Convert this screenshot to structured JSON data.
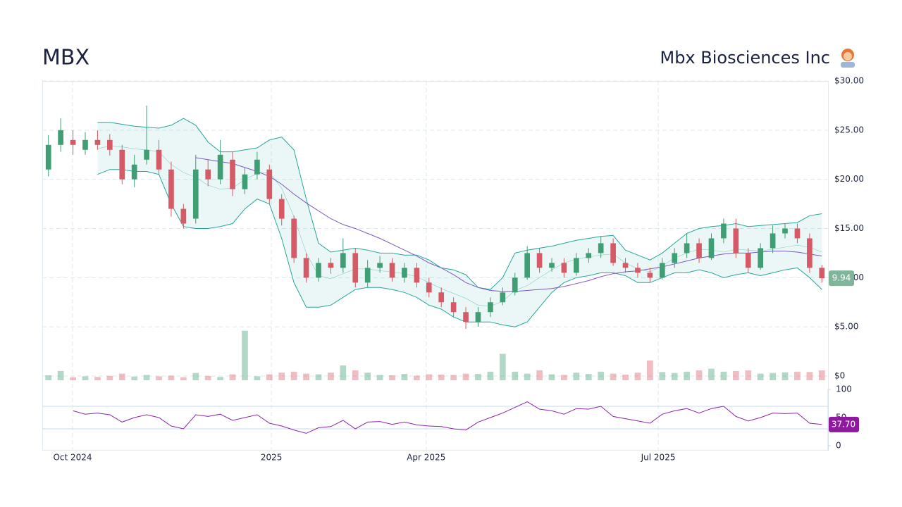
{
  "chart_data": {
    "type": "candlestick",
    "title": "MBX",
    "subtitle": "Mbx Biosciences Inc",
    "xlim": [
      -0.5,
      63.5
    ],
    "xticks": [
      {
        "value": 1.97,
        "label": "Oct 2024"
      },
      {
        "value": 18.16,
        "label": "2025"
      },
      {
        "value": 30.77,
        "label": "Apr 2025"
      },
      {
        "value": 49.67,
        "label": "Jul 2025"
      }
    ],
    "ylim": [
      0,
      30
    ],
    "yticks": [
      {
        "value": 0,
        "label": "$0"
      },
      {
        "value": 5,
        "label": "$5.00"
      },
      {
        "value": 10,
        "label": "$10.00"
      },
      {
        "value": 15,
        "label": "$15.00"
      },
      {
        "value": 20,
        "label": "$20.00"
      },
      {
        "value": 25,
        "label": "$25.00"
      },
      {
        "value": 30,
        "label": "$30.00"
      }
    ],
    "grid": true,
    "up_color": "#3f9e74",
    "down_color": "#d65a66",
    "open": [
      21,
      23.5,
      24,
      23,
      24,
      24,
      23,
      20,
      22,
      23,
      21,
      17,
      16,
      21,
      20,
      22,
      19,
      20.5,
      21,
      18,
      16,
      12,
      10,
      11.5,
      11,
      12.5,
      9.5,
      11,
      11.5,
      10,
      11,
      9.5,
      8.5,
      7.5,
      6.5,
      5.5,
      6.5,
      7.5,
      8.5,
      10,
      12.5,
      11,
      11.5,
      10.5,
      12,
      12.5,
      13.5,
      11.5,
      11,
      10.5,
      10,
      11.5,
      12.5,
      13.5,
      12,
      14,
      15,
      12.5,
      11,
      13,
      14.5,
      15,
      14,
      11
    ],
    "high": [
      24.5,
      26.2,
      25,
      24.8,
      25,
      24.6,
      23.5,
      22.5,
      27.5,
      24,
      21.8,
      17.5,
      22.5,
      22,
      24,
      22.8,
      21.2,
      22.8,
      21.5,
      18.5,
      16.3,
      12.5,
      12,
      12,
      14,
      13,
      11.8,
      12.2,
      12,
      11.5,
      11.5,
      10,
      9,
      8,
      7,
      7,
      8,
      9,
      10.5,
      13.2,
      13,
      12,
      12,
      12.5,
      13,
      14.2,
      14,
      12,
      11.5,
      11,
      12,
      13,
      14.5,
      14,
      14.5,
      16,
      16,
      13,
      13.5,
      15.3,
      15.5,
      15.5,
      14.5,
      11.3
    ],
    "low": [
      20.3,
      22.8,
      22.5,
      22.5,
      23,
      22.4,
      19.5,
      19.2,
      21.5,
      20.5,
      16.2,
      15,
      15.5,
      19.3,
      19.5,
      18.3,
      18.5,
      20,
      17.5,
      15.3,
      11.5,
      9.5,
      9.6,
      10.4,
      10.5,
      9,
      9,
      10.5,
      9.6,
      9.5,
      9,
      8,
      7,
      6,
      4.8,
      5,
      6,
      7.2,
      8.2,
      9.8,
      10.5,
      10.6,
      10,
      10.2,
      11.5,
      12,
      11.2,
      10.5,
      10,
      9.5,
      9.8,
      11,
      12,
      11.5,
      11.8,
      13.5,
      12,
      10.5,
      10.8,
      12.5,
      14,
      13.5,
      10.5,
      9.5
    ],
    "close": [
      23.5,
      25,
      23.5,
      24,
      23.5,
      23,
      20,
      21.5,
      23,
      21,
      17,
      15.5,
      21,
      20,
      22.5,
      19,
      20.5,
      22,
      18,
      16,
      12,
      10,
      11.5,
      11,
      12.5,
      9.5,
      11,
      11.5,
      10,
      11,
      9.5,
      8.5,
      7.5,
      6.5,
      5.5,
      6.5,
      7.5,
      8.5,
      10,
      12.5,
      11,
      11.5,
      10.5,
      12,
      12.5,
      13.5,
      11.5,
      11,
      10.5,
      10,
      11.5,
      12.5,
      13.5,
      12,
      14,
      15.5,
      12.5,
      11,
      13,
      14.5,
      15,
      14,
      11,
      9.94
    ],
    "last_price_label": "9.94",
    "last_price_color": "#7fb59a",
    "bands": {
      "color": "#26a69a",
      "upper": [
        null,
        null,
        null,
        null,
        25.8,
        25.8,
        25.6,
        25.4,
        25.3,
        25.2,
        25.5,
        26.2,
        25.5,
        23.8,
        22.8,
        22.8,
        23,
        23.2,
        24,
        24.3,
        23,
        18,
        13.5,
        12.6,
        12.8,
        13,
        12.8,
        12.5,
        12.5,
        12.3,
        12.3,
        11.8,
        11,
        10.8,
        10.3,
        9,
        8.8,
        10,
        12.5,
        12.8,
        13,
        13.2,
        13.5,
        13.8,
        14,
        14.2,
        14.3,
        12.8,
        12.3,
        11.8,
        12.5,
        13.5,
        14.5,
        15,
        15.2,
        15.3,
        15.5,
        15.2,
        15.3,
        15.4,
        15.5,
        15.6,
        16.3,
        16.5
      ],
      "middle": [
        null,
        null,
        null,
        null,
        23.1,
        23.4,
        23.3,
        23.1,
        23,
        22.8,
        21.5,
        20.7,
        20.2,
        19.4,
        19,
        19.1,
        20,
        20.6,
        20.7,
        19.1,
        16.2,
        12.5,
        10.2,
        9.9,
        10.4,
        10.9,
        10.9,
        10.7,
        10.6,
        10.4,
        10.1,
        9.5,
        8.9,
        8.4,
        7.9,
        7.2,
        7.1,
        7.6,
        8.7,
        9.2,
        10,
        10.8,
        11.5,
        11.9,
        12.1,
        12.3,
        12.4,
        11.5,
        10.9,
        10.6,
        11.2,
        12,
        12.5,
        12.9,
        12.8,
        12.6,
        12.9,
        12.8,
        12.7,
        12.9,
        13.1,
        13.3,
        13.1,
        12.6
      ],
      "lower": [
        null,
        null,
        null,
        null,
        20.5,
        21,
        21,
        20.8,
        20.8,
        20.5,
        17.5,
        15.2,
        15,
        15,
        15.2,
        15.5,
        17,
        18,
        17.5,
        14,
        9.5,
        7,
        7,
        7.2,
        8,
        8.8,
        9,
        9,
        8.8,
        8.5,
        8,
        7.2,
        6.8,
        6,
        5.5,
        5.5,
        5.5,
        5.2,
        5,
        5.5,
        7,
        8.5,
        9.5,
        10,
        10.2,
        10.5,
        10.5,
        10.2,
        9.5,
        9.5,
        10,
        10.5,
        10.5,
        10.8,
        10.5,
        10,
        10.3,
        10.5,
        10.2,
        10.5,
        10.8,
        11,
        10,
        8.8
      ]
    },
    "moving_average": {
      "color": "#7e57c2",
      "values": [
        null,
        null,
        null,
        null,
        null,
        null,
        null,
        null,
        null,
        null,
        null,
        null,
        22.2,
        22,
        21.8,
        21.6,
        21.2,
        20.8,
        20.3,
        19.5,
        18.5,
        17.6,
        16.8,
        16,
        15.4,
        15,
        14.5,
        14,
        13.4,
        12.8,
        12.2,
        11.5,
        11,
        10.3,
        9.5,
        9,
        8.7,
        8.6,
        8.6,
        8.7,
        8.8,
        8.9,
        9.1,
        9.4,
        9.7,
        10.1,
        10.4,
        10.6,
        10.7,
        10.9,
        11.1,
        11.4,
        11.7,
        12,
        12.2,
        12.4,
        12.5,
        12.5,
        12.6,
        12.7,
        12.7,
        12.6,
        12.4,
        12.2
      ]
    },
    "volume": {
      "ylim": [
        0,
        1600000
      ],
      "values": [
        150000,
        280000,
        90000,
        120000,
        100000,
        130000,
        200000,
        110000,
        160000,
        120000,
        140000,
        90000,
        220000,
        130000,
        100000,
        180000,
        1500000,
        120000,
        180000,
        230000,
        260000,
        200000,
        180000,
        230000,
        450000,
        300000,
        230000,
        160000,
        150000,
        190000,
        140000,
        180000,
        170000,
        160000,
        200000,
        190000,
        260000,
        800000,
        260000,
        200000,
        300000,
        180000,
        160000,
        230000,
        190000,
        260000,
        200000,
        170000,
        230000,
        600000,
        250000,
        220000,
        260000,
        300000,
        350000,
        260000,
        280000,
        300000,
        200000,
        220000,
        240000,
        260000,
        250000,
        300000
      ]
    },
    "rsi": {
      "color": "#8e24aa",
      "ylim": [
        0,
        100
      ],
      "yticks": [
        0,
        50,
        100
      ],
      "levels": [
        30,
        70
      ],
      "values": [
        null,
        null,
        62,
        56,
        58,
        55,
        42,
        50,
        55,
        50,
        35,
        30,
        55,
        52,
        56,
        45,
        50,
        55,
        40,
        35,
        28,
        22,
        32,
        34,
        45,
        30,
        42,
        43,
        38,
        42,
        37,
        35,
        34,
        30,
        28,
        42,
        50,
        58,
        68,
        78,
        65,
        62,
        56,
        66,
        65,
        70,
        52,
        48,
        44,
        40,
        56,
        62,
        66,
        58,
        66,
        70,
        52,
        44,
        50,
        58,
        57,
        58,
        40,
        37.7
      ],
      "last_label": "37.70"
    }
  }
}
